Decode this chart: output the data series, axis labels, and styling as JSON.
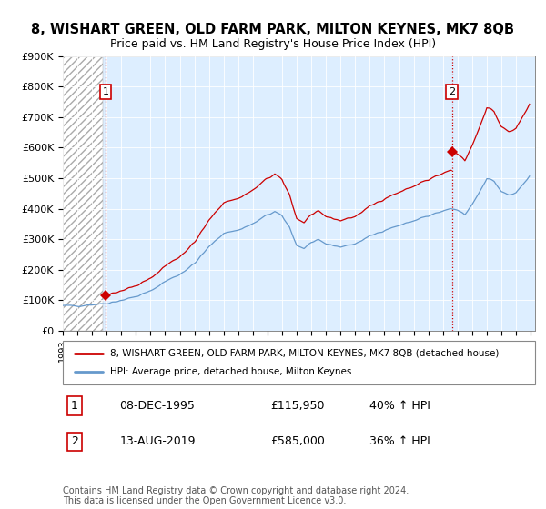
{
  "title": "8, WISHART GREEN, OLD FARM PARK, MILTON KEYNES, MK7 8QB",
  "subtitle": "Price paid vs. HM Land Registry's House Price Index (HPI)",
  "ylabel_ticks": [
    "£0",
    "£100K",
    "£200K",
    "£300K",
    "£400K",
    "£500K",
    "£600K",
    "£700K",
    "£800K",
    "£900K"
  ],
  "ytick_vals": [
    0,
    100000,
    200000,
    300000,
    400000,
    500000,
    600000,
    700000,
    800000,
    900000
  ],
  "ylim": [
    0,
    900000
  ],
  "xlim_start": 1993.0,
  "xlim_end": 2025.3,
  "hatch_end": 1995.75,
  "sale1_x": 1995.93,
  "sale1_y": 115950,
  "sale2_x": 2019.62,
  "sale2_y": 585000,
  "legend_label1": "8, WISHART GREEN, OLD FARM PARK, MILTON KEYNES, MK7 8QB (detached house)",
  "legend_label2": "HPI: Average price, detached house, Milton Keynes",
  "annotation1_label": "1",
  "annotation2_label": "2",
  "footnote": "Contains HM Land Registry data © Crown copyright and database right 2024.\nThis data is licensed under the Open Government Licence v3.0.",
  "line_color_red": "#cc0000",
  "line_color_blue": "#6699cc",
  "chart_bg_color": "#ddeeff",
  "hatch_color": "#bbbbcc",
  "grid_color": "#ffffff",
  "title_fontsize": 10.5,
  "subtitle_fontsize": 9,
  "tick_fontsize": 8,
  "hpi_data_monthly": {
    "note": "Monthly HPI data 1993-2025 for Milton Keynes detached",
    "start_year": 1993.0,
    "step": 0.08333
  }
}
